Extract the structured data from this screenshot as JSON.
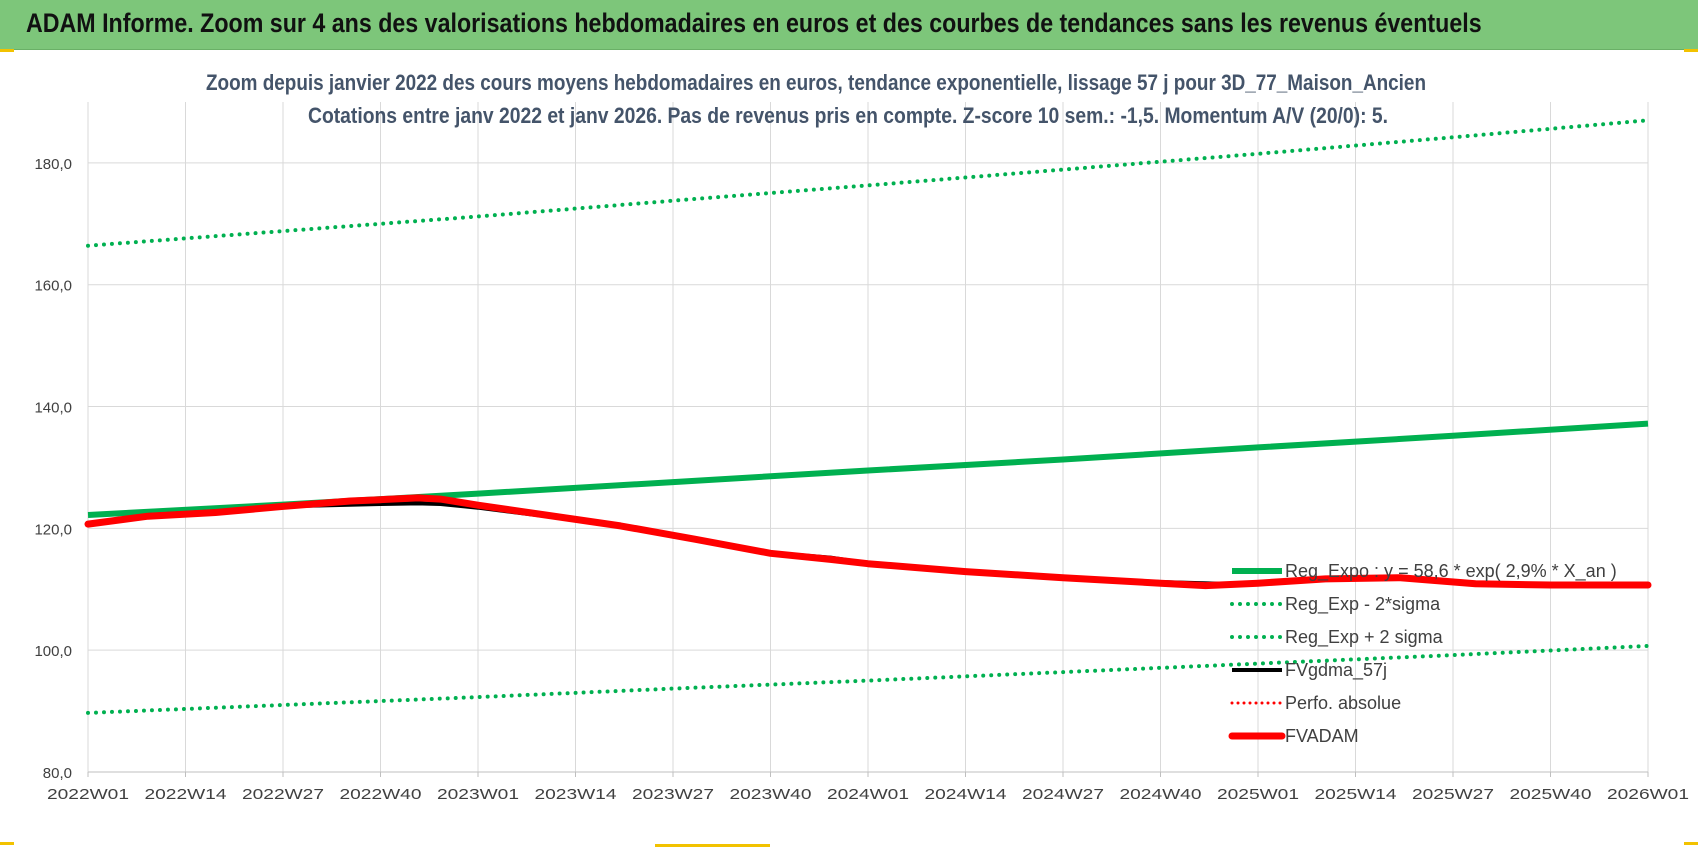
{
  "banner": {
    "title": "ADAM Informe. Zoom sur 4 ans des valorisations hebdomadaires en euros et des courbes de tendances sans les revenus éventuels"
  },
  "colors": {
    "banner_bg": "#7dc67a",
    "trend_green": "#00b050",
    "fvadam_red": "#ff0000",
    "fvgdma_black": "#000000",
    "grid": "#d9d9d9",
    "title_text": "#44546a"
  },
  "chart_data": {
    "type": "line",
    "title": "Zoom depuis janvier 2022 des cours moyens hebdomadaires en euros, tendance exponentielle, lissage 57 j pour 3D_77_Maison_Ancien",
    "subtitle": "Cotations entre janv 2022 et janv 2026. Pas de revenus pris en compte. Z-score 10 sem.: -1,5. Momentum A/V (20/0): 5.",
    "x_tick_labels": [
      "2022W01",
      "2022W14",
      "2022W27",
      "2022W40",
      "2023W01",
      "2023W14",
      "2023W27",
      "2023W40",
      "2024W01",
      "2024W14",
      "2024W27",
      "2024W40",
      "2025W01",
      "2025W14",
      "2025W27",
      "2025W40",
      "2026W01"
    ],
    "y_tick_labels": [
      "80,0",
      "100,0",
      "120,0",
      "140,0",
      "160,0",
      "180,0"
    ],
    "ylim": [
      80,
      190
    ],
    "grid": true,
    "legend_position": "bottom-right",
    "series": [
      {
        "name": "Reg_Expo : y = 58,6 * exp( 2,9% * X_an )",
        "style": "solid-thick",
        "color": "#00b050",
        "points": [
          [
            "2022W01",
            122.2
          ],
          [
            "2022W27",
            123.9
          ],
          [
            "2023W01",
            125.7
          ],
          [
            "2023W27",
            127.6
          ],
          [
            "2024W01",
            129.5
          ],
          [
            "2024W27",
            131.3
          ],
          [
            "2025W01",
            133.3
          ],
          [
            "2025W27",
            135.2
          ],
          [
            "2026W01",
            137.2
          ]
        ]
      },
      {
        "name": "Reg_Exp - 2*sigma",
        "style": "dotted",
        "color": "#00b050",
        "points": [
          [
            "2022W01",
            89.7
          ],
          [
            "2022W27",
            91.0
          ],
          [
            "2023W01",
            92.3
          ],
          [
            "2023W27",
            93.7
          ],
          [
            "2024W01",
            95.0
          ],
          [
            "2024W27",
            96.4
          ],
          [
            "2025W01",
            97.8
          ],
          [
            "2025W27",
            99.2
          ],
          [
            "2026W01",
            100.7
          ]
        ]
      },
      {
        "name": "Reg_Exp + 2 sigma",
        "style": "dotted",
        "color": "#00b050",
        "points": [
          [
            "2022W01",
            166.4
          ],
          [
            "2022W27",
            168.8
          ],
          [
            "2023W01",
            171.2
          ],
          [
            "2023W27",
            173.8
          ],
          [
            "2024W01",
            176.3
          ],
          [
            "2024W27",
            178.9
          ],
          [
            "2025W01",
            181.5
          ],
          [
            "2025W27",
            184.2
          ],
          [
            "2026W01",
            187.0
          ]
        ]
      },
      {
        "name": "FVgdma_57j",
        "style": "solid",
        "color": "#000000",
        "points": [
          [
            "2022W01",
            120.6
          ],
          [
            "2022W09",
            122.2
          ],
          [
            "2022W18",
            122.8
          ],
          [
            "2022W27",
            123.6
          ],
          [
            "2022W40",
            124.0
          ],
          [
            "2022W45",
            124.1
          ],
          [
            "2022W48",
            124.0
          ],
          [
            "2023W01",
            123.4
          ],
          [
            "2023W10",
            122.0
          ],
          [
            "2023W20",
            120.3
          ],
          [
            "2023W30",
            118.1
          ],
          [
            "2023W40",
            116.0
          ],
          [
            "2023W48",
            115.2
          ],
          [
            "2024W01",
            114.3
          ],
          [
            "2024W14",
            112.9
          ],
          [
            "2024W27",
            112.0
          ],
          [
            "2024W40",
            111.2
          ],
          [
            "2024W48",
            110.9
          ],
          [
            "2025W01",
            111.0
          ],
          [
            "2025W10",
            111.8
          ],
          [
            "2025W20",
            112.0
          ],
          [
            "2025W30",
            110.9
          ],
          [
            "2025W40",
            110.7
          ],
          [
            "2026W01",
            110.7
          ]
        ]
      },
      {
        "name": "Perfo. absolue",
        "style": "dotted-red",
        "color": "#ff0000",
        "points": []
      },
      {
        "name": "FVADAM",
        "style": "solid-thick",
        "color": "#ff0000",
        "points": [
          [
            "2022W01",
            120.7
          ],
          [
            "2022W09",
            122.0
          ],
          [
            "2022W18",
            122.6
          ],
          [
            "2022W27",
            123.6
          ],
          [
            "2022W36",
            124.5
          ],
          [
            "2022W40",
            124.7
          ],
          [
            "2022W45",
            125.0
          ],
          [
            "2022W48",
            124.8
          ],
          [
            "2023W01",
            123.8
          ],
          [
            "2023W10",
            122.2
          ],
          [
            "2023W20",
            120.4
          ],
          [
            "2023W30",
            118.2
          ],
          [
            "2023W40",
            115.9
          ],
          [
            "2023W48",
            114.9
          ],
          [
            "2024W01",
            114.2
          ],
          [
            "2024W14",
            112.9
          ],
          [
            "2024W27",
            111.9
          ],
          [
            "2024W40",
            111.0
          ],
          [
            "2024W46",
            110.6
          ],
          [
            "2025W01",
            111.0
          ],
          [
            "2025W10",
            111.7
          ],
          [
            "2025W20",
            111.9
          ],
          [
            "2025W30",
            110.9
          ],
          [
            "2025W40",
            110.7
          ],
          [
            "2026W01",
            110.7
          ]
        ]
      }
    ]
  }
}
